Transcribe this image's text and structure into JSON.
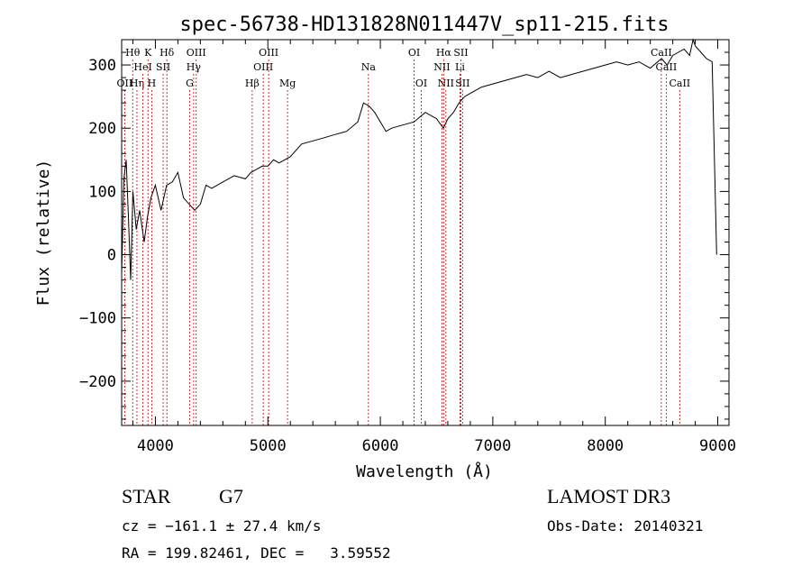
{
  "chart_data": {
    "type": "line",
    "title": "spec-56738-HD131828N011447V_sp11-215.fits",
    "xlabel": "Wavelength (Å)",
    "ylabel": "Flux (relative)",
    "xlim": [
      3700,
      9100
    ],
    "ylim": [
      -270,
      340
    ],
    "xticks": [
      4000,
      5000,
      6000,
      7000,
      8000,
      9000
    ],
    "yticks": [
      -200,
      -100,
      0,
      100,
      200,
      300
    ],
    "series": [
      {
        "name": "flux",
        "x": [
          3700,
          3720,
          3740,
          3760,
          3780,
          3800,
          3830,
          3860,
          3900,
          3930,
          3960,
          4000,
          4050,
          4100,
          4150,
          4200,
          4250,
          4300,
          4350,
          4400,
          4450,
          4500,
          4600,
          4700,
          4800,
          4850,
          4900,
          4950,
          5000,
          5050,
          5100,
          5200,
          5300,
          5400,
          5500,
          5600,
          5700,
          5800,
          5850,
          5900,
          5950,
          6000,
          6050,
          6100,
          6200,
          6300,
          6400,
          6500,
          6560,
          6600,
          6650,
          6700,
          6750,
          6800,
          6900,
          7000,
          7100,
          7200,
          7300,
          7400,
          7500,
          7600,
          7700,
          7800,
          7900,
          8000,
          8100,
          8200,
          8300,
          8400,
          8500,
          8550,
          8600,
          8650,
          8700,
          8750,
          8780,
          8800,
          8850,
          8900,
          8950,
          8990
        ],
        "y": [
          -30,
          120,
          150,
          60,
          -40,
          100,
          40,
          70,
          20,
          60,
          90,
          110,
          70,
          110,
          115,
          130,
          90,
          80,
          70,
          80,
          110,
          105,
          115,
          125,
          120,
          130,
          135,
          140,
          140,
          150,
          145,
          155,
          175,
          180,
          185,
          190,
          195,
          210,
          240,
          235,
          225,
          210,
          195,
          200,
          205,
          210,
          225,
          215,
          200,
          215,
          225,
          240,
          250,
          255,
          265,
          270,
          275,
          280,
          285,
          280,
          290,
          280,
          285,
          290,
          295,
          300,
          305,
          300,
          305,
          295,
          310,
          300,
          315,
          320,
          325,
          315,
          340,
          330,
          320,
          310,
          305,
          0
        ]
      }
    ],
    "line_markers": [
      {
        "label": "Hθ",
        "wavelength": 3798,
        "row": "top"
      },
      {
        "label": "Hη",
        "wavelength": 3836,
        "row": "bottom"
      },
      {
        "label": "OII",
        "wavelength": 3727,
        "row": "bottom"
      },
      {
        "label": "K",
        "wavelength": 3934,
        "row": "top"
      },
      {
        "label": "H",
        "wavelength": 3968,
        "row": "bottom"
      },
      {
        "label": "HeI",
        "wavelength": 3889,
        "row": "mid"
      },
      {
        "label": "SII",
        "wavelength": 4069,
        "row": "mid"
      },
      {
        "label": "Hδ",
        "wavelength": 4102,
        "row": "top"
      },
      {
        "label": "Hγ",
        "wavelength": 4340,
        "row": "mid"
      },
      {
        "label": "G",
        "wavelength": 4305,
        "row": "bottom"
      },
      {
        "label": "OIII",
        "wavelength": 4363,
        "row": "top"
      },
      {
        "label": "Hβ",
        "wavelength": 4861,
        "row": "bottom"
      },
      {
        "label": "OIII",
        "wavelength": 4959,
        "row": "mid"
      },
      {
        "label": "OIII",
        "wavelength": 5007,
        "row": "top"
      },
      {
        "label": "Mg",
        "wavelength": 5175,
        "row": "bottom"
      },
      {
        "label": "Na",
        "wavelength": 5894,
        "row": "mid"
      },
      {
        "label": "OI",
        "wavelength": 6300,
        "row": "top"
      },
      {
        "label": "OI",
        "wavelength": 6364,
        "row": "bottom"
      },
      {
        "label": "Hα",
        "wavelength": 6563,
        "row": "top"
      },
      {
        "label": "NII",
        "wavelength": 6548,
        "row": "mid"
      },
      {
        "label": "NII",
        "wavelength": 6583,
        "row": "bottom"
      },
      {
        "label": "SII",
        "wavelength": 6716,
        "row": "top"
      },
      {
        "label": "Li",
        "wavelength": 6708,
        "row": "mid"
      },
      {
        "label": "SII",
        "wavelength": 6731,
        "row": "bottom"
      },
      {
        "label": "CaII",
        "wavelength": 8498,
        "row": "top"
      },
      {
        "label": "CaII",
        "wavelength": 8542,
        "row": "mid"
      },
      {
        "label": "CaII",
        "wavelength": 8662,
        "row": "bottom"
      }
    ]
  },
  "info": {
    "object_class": "STAR",
    "subclass": "G7",
    "survey": "LAMOST DR3",
    "redshift": "cz = −161.1 ± 27.4 km/s",
    "obs_date": "Obs-Date: 20140321",
    "coords": "RA = 199.82461, DEC =   3.59552"
  }
}
